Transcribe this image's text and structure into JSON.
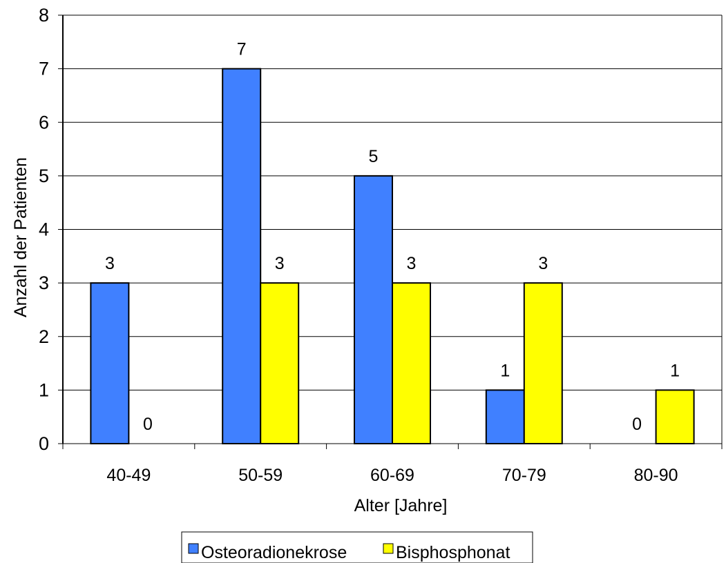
{
  "chart_data": {
    "type": "bar",
    "categories": [
      "40-49",
      "50-59",
      "60-69",
      "70-79",
      "80-90"
    ],
    "series": [
      {
        "name": "Osteoradionekrose",
        "values": [
          3,
          7,
          5,
          1,
          0
        ],
        "color": "#4080FF"
      },
      {
        "name": "Bisphosphonat",
        "values": [
          0,
          3,
          3,
          3,
          1
        ],
        "color": "#FFFF00"
      }
    ],
    "xlabel": "Alter [Jahre]",
    "ylabel": "Anzahl der Patienten",
    "ylim": [
      0,
      8
    ],
    "yticks": [
      0,
      1,
      2,
      3,
      4,
      5,
      6,
      7,
      8
    ],
    "grid": true,
    "legend": "bottom",
    "data_labels": true
  }
}
